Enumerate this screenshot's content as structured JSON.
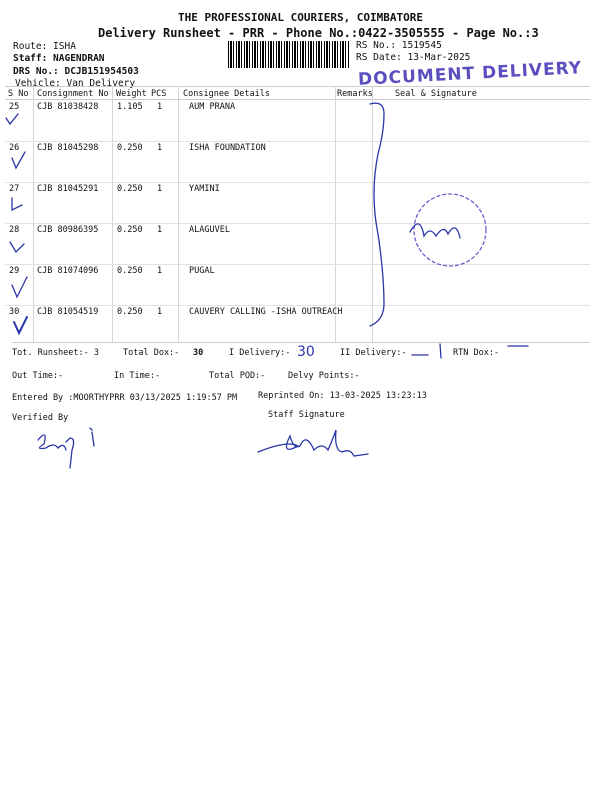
{
  "header": {
    "company": "THE PROFESSIONAL COURIERS, COIMBATORE",
    "subtitle": "Delivery Runsheet - PRR - Phone No.:0422-3505555 - Page No.:3",
    "route": "Route: ISHA",
    "staff": "Staff: NAGENDRAN",
    "drs": "DRS No.: DCJB151954503",
    "vehicle": "Vehicle: Van Delivery",
    "rs_no": "RS No.: 1519545",
    "rs_date": "RS Date: 13-Mar-2025",
    "stamp": "DOCUMENT DELIVERY"
  },
  "table": {
    "columns": [
      "S No",
      "Consignment No",
      "Weight",
      "PCS",
      "Consignee Details",
      "Remarks",
      "Seal & Signature"
    ],
    "rows": [
      {
        "sno": "25",
        "consignment": "CJB 81038428",
        "weight": "1.105",
        "pcs": "1",
        "consignee": "AUM PRANA"
      },
      {
        "sno": "26",
        "consignment": "CJB 81045298",
        "weight": "0.250",
        "pcs": "1",
        "consignee": "ISHA FOUNDATION"
      },
      {
        "sno": "27",
        "consignment": "CJB 81045291",
        "weight": "0.250",
        "pcs": "1",
        "consignee": "YAMINI"
      },
      {
        "sno": "28",
        "consignment": "CJB 80986395",
        "weight": "0.250",
        "pcs": "1",
        "consignee": "ALAGUVEL"
      },
      {
        "sno": "29",
        "consignment": "CJB 81074096",
        "weight": "0.250",
        "pcs": "1",
        "consignee": "PUGAL"
      },
      {
        "sno": "30",
        "consignment": "CJB 81054519",
        "weight": "0.250",
        "pcs": "1",
        "consignee": "CAUVERY CALLING -ISHA OUTREACH"
      }
    ]
  },
  "summary": {
    "tot_runsheet": "Tot. Runsheet:- 3",
    "total_dox": "Total Dox:-",
    "total_dox_value": "30",
    "i_delivery": "I Delivery:-",
    "i_delivery_handwritten": "30",
    "ii_delivery": "II Delivery:-",
    "rtn_dox": "RTN Dox:-",
    "out_time": "Out Time:-",
    "in_time": "In Time:-",
    "total_pod": "Total POD:-",
    "delvy_points": "Delvy Points:-",
    "entered_by": "Entered By :MOORTHYPRR 03/13/2025 1:19:57 PM",
    "reprinted_on": "Reprinted On: 13-03-2025 13:23:13",
    "verified_by": "Verified By",
    "staff_signature": "Staff Signature"
  },
  "colors": {
    "ink": "#2a35a8",
    "stamp": "#5b4fc0"
  }
}
